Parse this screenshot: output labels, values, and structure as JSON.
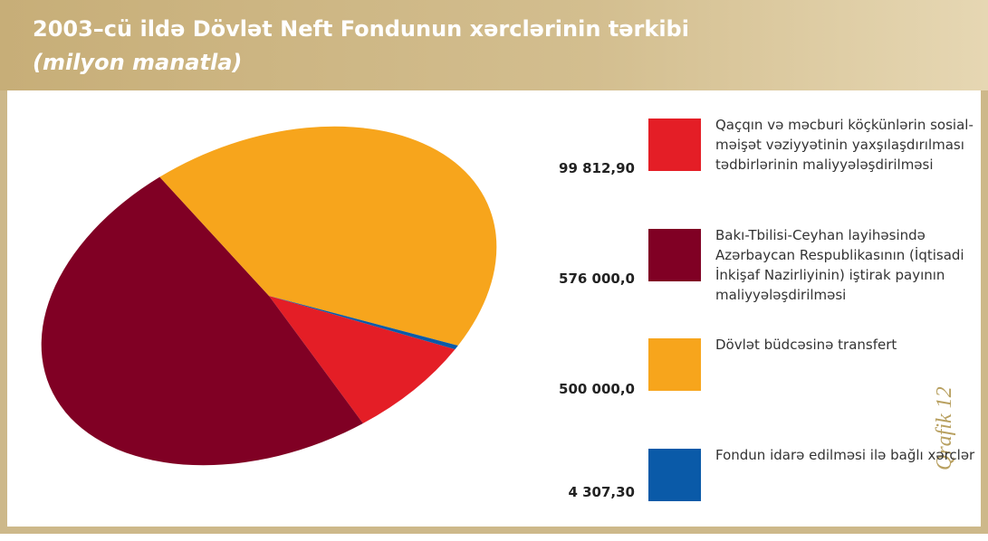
{
  "chart_data": {
    "type": "pie",
    "title": "2003–cü ildə Dövlət Neft Fondunun xərclərinin tərkibi",
    "subtitle": "(milyon manatla)",
    "annotation": "Qrafik 12",
    "categories": [
      "Qaçqın və məcburi köçkünlərin sosial-məişət vəziyyətinin yaxşılaşdırılması tədbirlərinin maliyyələşdirilməsi",
      "Bakı-Tbilisi-Ceyhan layihəsində Azərbaycan Respublikasının (İqtisadi İnkişaf Nazirliyinin) iştirak payının maliyyələşdirilməsi",
      "Dövlət büdcəsinə transfert",
      "Fondun idarə edilməsi ilə bağlı xərclər"
    ],
    "values": [
      99812.9,
      576000.0,
      500000.0,
      4307.3
    ],
    "value_labels": [
      "99 812,90",
      "576 000,0",
      "500 000,0",
      "4 307,30"
    ],
    "colors": [
      "#e41e26",
      "#800024",
      "#f7a51c",
      "#0a5aa8"
    ]
  }
}
